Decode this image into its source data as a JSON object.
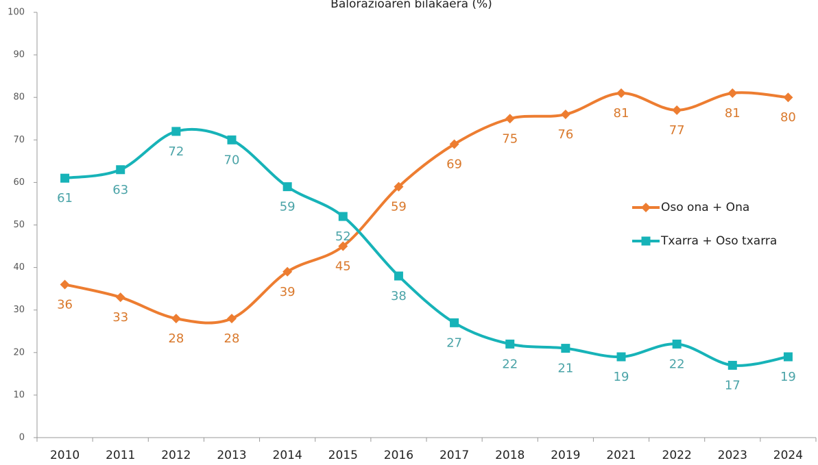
{
  "chart_data": {
    "type": "line",
    "title": "Balorazioaren bilakaera (%)",
    "categories": [
      "2010",
      "2011",
      "2012",
      "2013",
      "2014",
      "2015",
      "2016",
      "2017",
      "2018",
      "2019",
      "2021",
      "2022",
      "2023",
      "2024"
    ],
    "series": [
      {
        "name": "Oso ona + Ona",
        "color": "#ed7d31",
        "label_color": "#d9782b",
        "marker": "diamond",
        "values": [
          36,
          33,
          28,
          28,
          39,
          45,
          59,
          69,
          75,
          76,
          81,
          77,
          81,
          80
        ]
      },
      {
        "name": "Txarra + Oso txarra",
        "color": "#17b3b8",
        "label_color": "#4aa3a7",
        "marker": "square",
        "values": [
          61,
          63,
          72,
          70,
          59,
          52,
          38,
          27,
          22,
          21,
          19,
          22,
          17,
          19
        ]
      }
    ],
    "ylim": [
      0,
      100
    ],
    "yticks": [
      0,
      10,
      20,
      30,
      40,
      50,
      60,
      70,
      80,
      90,
      100
    ],
    "legend": "right",
    "smooth": true
  }
}
